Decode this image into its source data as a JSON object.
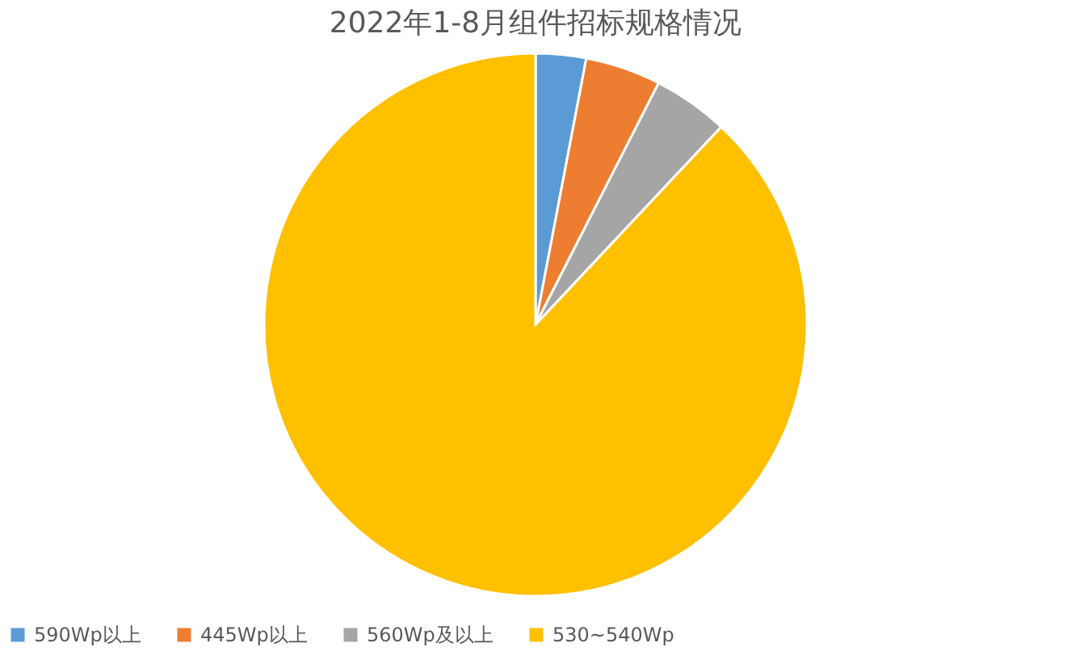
{
  "chart_data": {
    "type": "pie",
    "title": "2022年1-8月组件招标规格情况",
    "categories": [
      "590Wp以上",
      "445Wp以上",
      "560Wp及以上",
      "530~540Wp"
    ],
    "values": [
      3,
      4.5,
      4.5,
      88
    ],
    "colors": [
      "#5b9bd5",
      "#ed7d31",
      "#a5a5a5",
      "#ffc000"
    ],
    "legend": "bottom"
  }
}
